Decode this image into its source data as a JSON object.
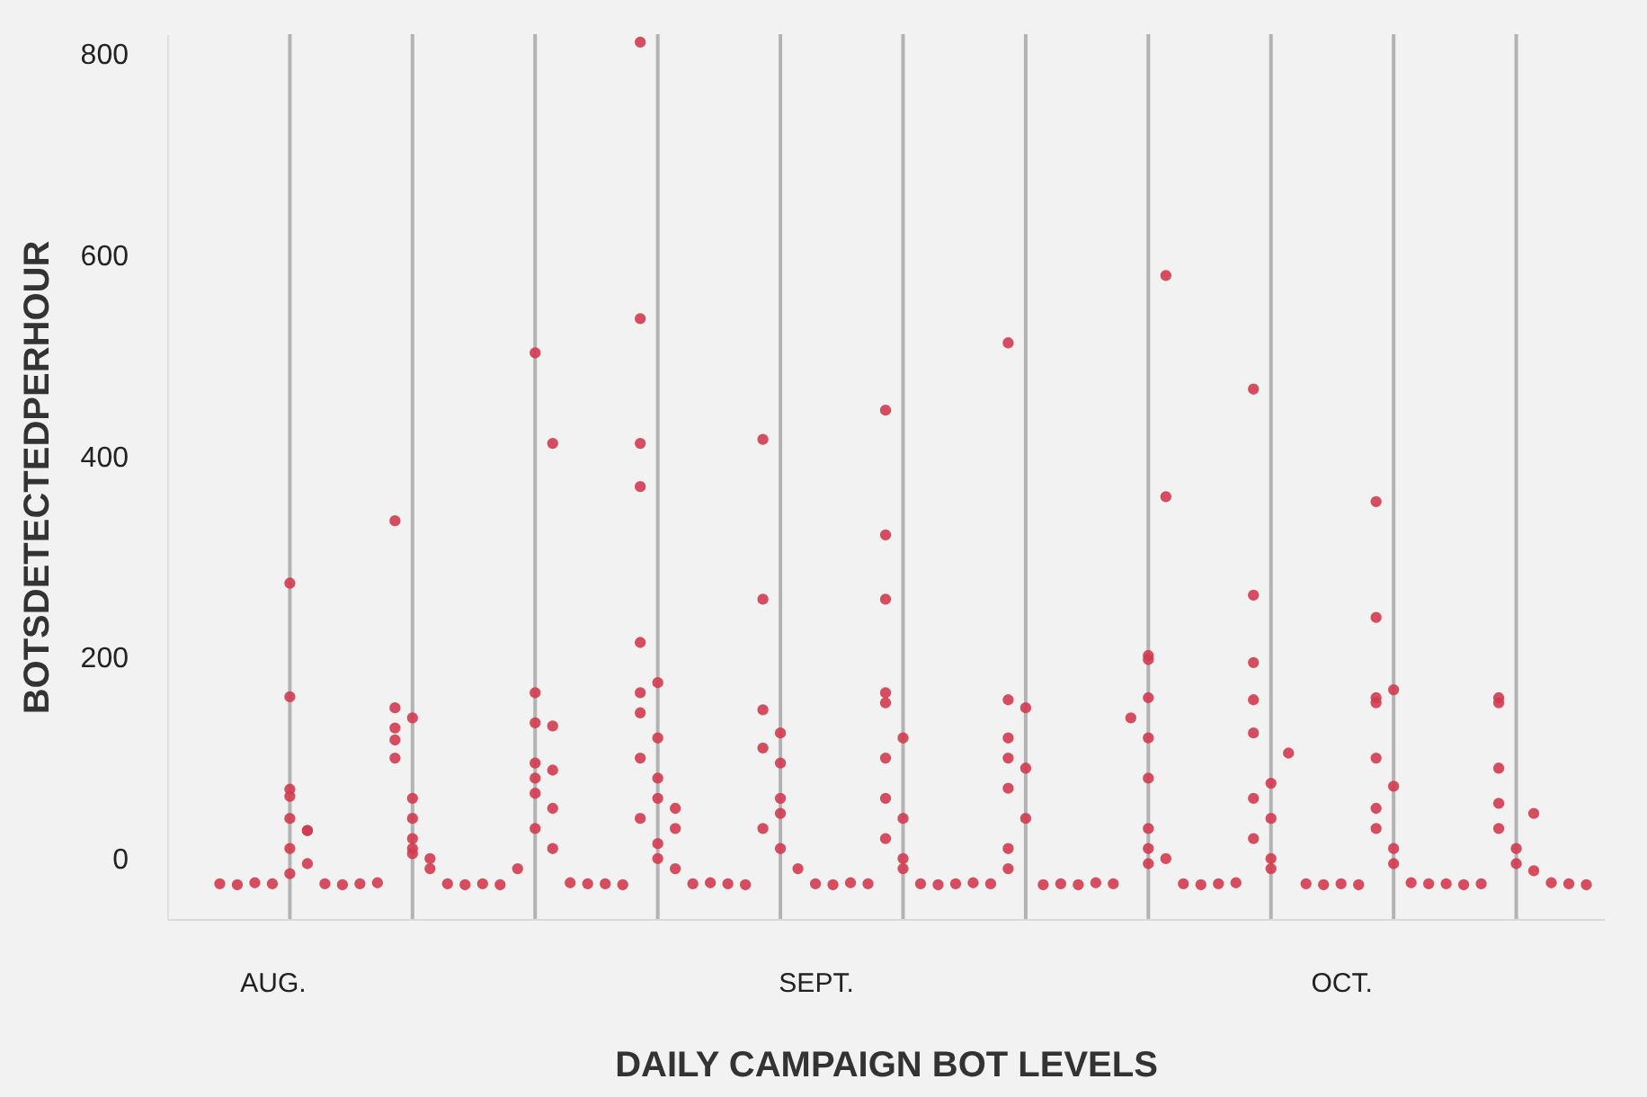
{
  "chart_data": {
    "type": "scatter",
    "xlabel": "DAILY CAMPAIGN BOT LEVELS",
    "ylabel": "BOTSDETECTEDPERHOUR",
    "x": [
      "--08-02",
      "--08-02",
      "--08-02",
      "--08-02",
      "--08-02",
      "--08-03",
      "--08-03",
      "--08-02",
      "--08-03",
      "--08-02",
      "--08-08",
      "--08-08",
      "--08-08",
      "--08-08",
      "--08-09",
      "--08-08",
      "--08-09",
      "--08-09",
      "--08-09",
      "--08-09",
      "--08-10",
      "--08-10",
      "--08-09",
      "--08-16",
      "--08-17",
      "--08-16",
      "--08-16",
      "--08-17",
      "--08-16",
      "--08-17",
      "--08-16",
      "--08-16",
      "--08-17",
      "--08-16",
      "--08-17",
      "--08-15",
      "--08-22",
      "--08-22",
      "--08-22",
      "--08-22",
      "--08-22",
      "--08-23",
      "--08-22",
      "--08-22",
      "--08-23",
      "--08-22",
      "--08-23",
      "--08-23",
      "--08-24",
      "--08-22",
      "--08-24",
      "--08-23",
      "--08-23",
      "--08-24",
      "--08-29",
      "--08-29",
      "--08-29",
      "--08-30",
      "--08-29",
      "--08-30",
      "--08-30",
      "--08-30",
      "--08-29",
      "--08-30",
      "--08-31",
      "--09-05",
      "--09-05",
      "--09-05",
      "--09-05",
      "--09-05",
      "--09-06",
      "--09-05",
      "--09-05",
      "--09-06",
      "--09-05",
      "--09-06",
      "--09-06",
      "--09-12",
      "--09-12",
      "--09-13",
      "--09-12",
      "--09-12",
      "--09-13",
      "--09-12",
      "--09-13",
      "--09-12",
      "--09-12",
      "--09-21",
      "--09-21",
      "--09-20",
      "--09-20",
      "--09-20",
      "--09-19",
      "--09-20",
      "--09-20",
      "--09-20",
      "--09-20",
      "--09-20",
      "--09-21",
      "--09-26",
      "--09-26",
      "--09-26",
      "--09-26",
      "--09-26",
      "--09-28",
      "--09-27",
      "--09-26",
      "--09-27",
      "--09-26",
      "--09-27",
      "--09-27",
      "--10-03",
      "--10-03",
      "--10-04",
      "--10-03",
      "--10-03",
      "--10-03",
      "--10-04",
      "--10-03",
      "--10-03",
      "--10-04",
      "--10-04",
      "--10-10",
      "--10-10",
      "--10-10",
      "--10-10",
      "--10-12",
      "--10-10",
      "--10-11",
      "--10-11",
      "--10-12",
      "--07-29",
      "--07-30",
      "--07-31",
      "--08-01",
      "--08-04",
      "--08-05",
      "--08-06",
      "--08-07",
      "--08-11",
      "--08-12",
      "--08-13",
      "--08-14",
      "--08-18",
      "--08-19",
      "--08-20",
      "--08-21",
      "--08-25",
      "--08-26",
      "--08-27",
      "--08-28",
      "--09-01",
      "--09-02",
      "--09-03",
      "--09-04",
      "--09-07",
      "--09-08",
      "--09-09",
      "--09-10",
      "--09-11",
      "--09-14",
      "--09-15",
      "--09-16",
      "--09-17",
      "--09-18",
      "--09-22",
      "--09-23",
      "--09-24",
      "--09-25",
      "--09-29",
      "--09-30",
      "--10-01",
      "--10-02",
      "--10-05",
      "--10-06",
      "--10-07",
      "--10-08",
      "--10-09",
      "--10-13",
      "--10-14",
      "--10-15"
    ],
    "values": [
      274,
      161,
      69,
      62,
      40,
      28,
      28,
      10,
      -5,
      -15,
      336,
      150,
      130,
      118,
      140,
      100,
      60,
      40,
      20,
      10,
      0,
      -10,
      5,
      503,
      413,
      165,
      135,
      132,
      95,
      88,
      80,
      65,
      50,
      30,
      10,
      -10,
      812,
      537,
      413,
      370,
      215,
      175,
      165,
      145,
      120,
      100,
      80,
      60,
      50,
      40,
      30,
      15,
      0,
      -10,
      417,
      258,
      148,
      125,
      110,
      95,
      60,
      45,
      30,
      10,
      -10,
      446,
      322,
      258,
      165,
      155,
      120,
      100,
      60,
      40,
      20,
      0,
      -10,
      513,
      158,
      150,
      120,
      100,
      90,
      70,
      40,
      10,
      -10,
      580,
      360,
      202,
      198,
      160,
      140,
      120,
      80,
      30,
      10,
      -5,
      0,
      467,
      262,
      195,
      158,
      125,
      105,
      75,
      60,
      40,
      20,
      0,
      -10,
      355,
      240,
      168,
      160,
      155,
      100,
      72,
      50,
      30,
      10,
      -5,
      160,
      155,
      90,
      55,
      45,
      30,
      10,
      -5,
      -12,
      -25,
      -26,
      -24,
      -25,
      -25,
      -26,
      -25,
      -24,
      -25,
      -26,
      -25,
      -26,
      -24,
      -25,
      -25,
      -26,
      -25,
      -24,
      -25,
      -26,
      -25,
      -26,
      -24,
      -25,
      -25,
      -26,
      -25,
      -24,
      -25,
      -26,
      -25,
      -26,
      -24,
      -25,
      -25,
      -26,
      -25,
      -24,
      -25,
      -26,
      -25,
      -26,
      -24,
      -25,
      -25,
      -26,
      -25,
      -24,
      -25,
      -26
    ],
    "color": "#d13b4f",
    "marker": "circle",
    "xlim": [
      "--07-26",
      "--10-16"
    ],
    "xticks": [
      {
        "value": "--08-01",
        "label": "AUG."
      },
      {
        "value": "--09-01",
        "label": "SEPT."
      },
      {
        "value": "--10-01",
        "label": "OCT."
      }
    ],
    "ylim": [
      -60,
      820
    ],
    "yticks": [
      0,
      200,
      400,
      600,
      800
    ],
    "ref_lines": [
      {
        "axis": "x",
        "value": "--08-02",
        "color": "#b3b3b3"
      },
      {
        "axis": "x",
        "value": "--08-09",
        "color": "#b3b3b3"
      },
      {
        "axis": "x",
        "value": "--08-16",
        "color": "#b3b3b3"
      },
      {
        "axis": "x",
        "value": "--08-23",
        "color": "#b3b3b3"
      },
      {
        "axis": "x",
        "value": "--08-30",
        "color": "#b3b3b3"
      },
      {
        "axis": "x",
        "value": "--09-06",
        "color": "#b3b3b3"
      },
      {
        "axis": "x",
        "value": "--09-13",
        "color": "#b3b3b3"
      },
      {
        "axis": "x",
        "value": "--09-20",
        "color": "#b3b3b3"
      },
      {
        "axis": "x",
        "value": "--09-27",
        "color": "#b3b3b3"
      },
      {
        "axis": "x",
        "value": "--10-04",
        "color": "#b3b3b3"
      },
      {
        "axis": "x",
        "value": "--10-11",
        "color": "#b3b3b3"
      }
    ]
  }
}
